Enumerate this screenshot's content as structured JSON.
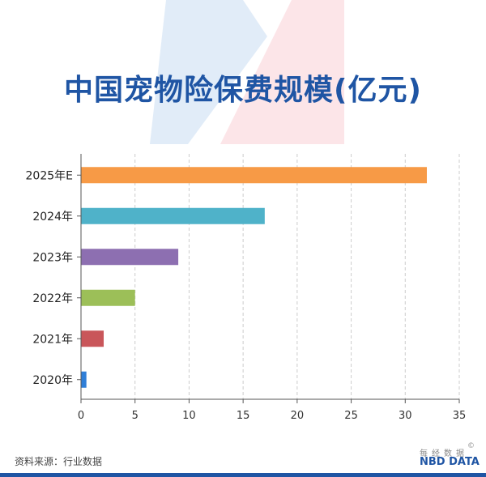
{
  "title": "中国宠物险保费规模(亿元)",
  "source": "资料来源：行业数据",
  "brand": {
    "cn": "每经数据",
    "en": "NBD DATA",
    "copyright": "©"
  },
  "colors": {
    "title": "#1f55a4",
    "axis": "#555555",
    "grid": "#cccccc"
  },
  "chart_data": {
    "type": "bar",
    "orientation": "horizontal",
    "categories": [
      "2025年E",
      "2024年",
      "2023年",
      "2022年",
      "2021年",
      "2020年"
    ],
    "values": [
      32,
      17,
      9,
      5,
      2.1,
      0.5
    ],
    "colors": [
      "#f79a46",
      "#4fb2c9",
      "#8d6fb1",
      "#9cbf58",
      "#c9565a",
      "#2f7fd8"
    ],
    "xlim": [
      0,
      35
    ],
    "xticks": [
      "0",
      "5",
      "10",
      "15",
      "20",
      "25",
      "30",
      "35"
    ],
    "grid": "vertical dashed",
    "xlabel": "",
    "ylabel": ""
  }
}
